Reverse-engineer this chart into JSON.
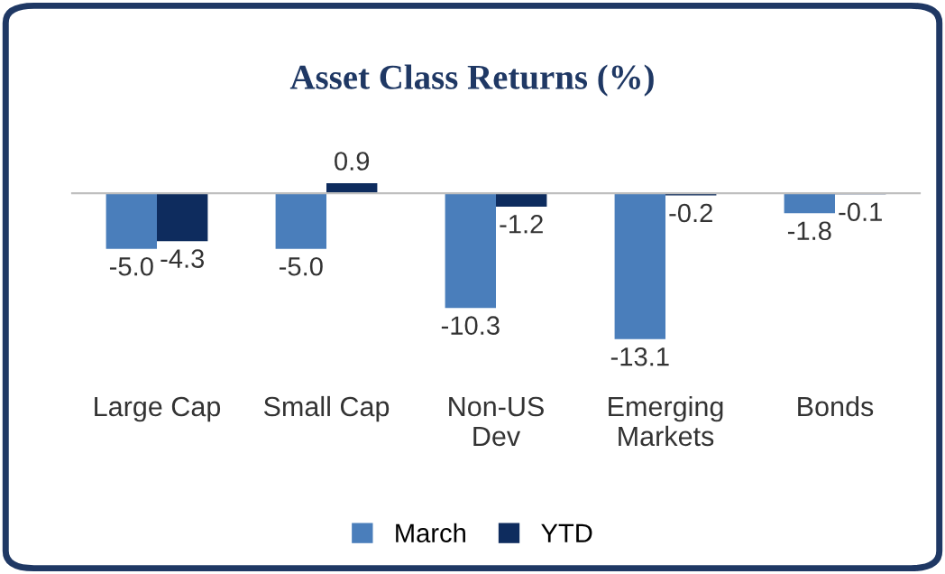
{
  "chart_data": {
    "type": "bar",
    "title": "Asset Class Returns (%)",
    "categories": [
      "Large Cap",
      "Small Cap",
      "Non-US\nDev",
      "Emerging\nMarkets",
      "Bonds"
    ],
    "series": [
      {
        "name": "March",
        "color": "#4a7ebb",
        "values": [
          -5.0,
          -5.0,
          -10.3,
          -13.1,
          -1.8
        ],
        "value_labels": [
          "-5.0",
          "-5.0",
          "-10.3",
          "-13.1",
          "-1.8"
        ]
      },
      {
        "name": "YTD",
        "color": "#0e2c5e",
        "values": [
          -4.3,
          0.9,
          -1.2,
          -0.2,
          -0.1
        ],
        "value_labels": [
          "-4.3",
          "0.9",
          "-1.2",
          "-0.2",
          "-0.1"
        ]
      }
    ],
    "legend": "bottom",
    "grid": false
  }
}
